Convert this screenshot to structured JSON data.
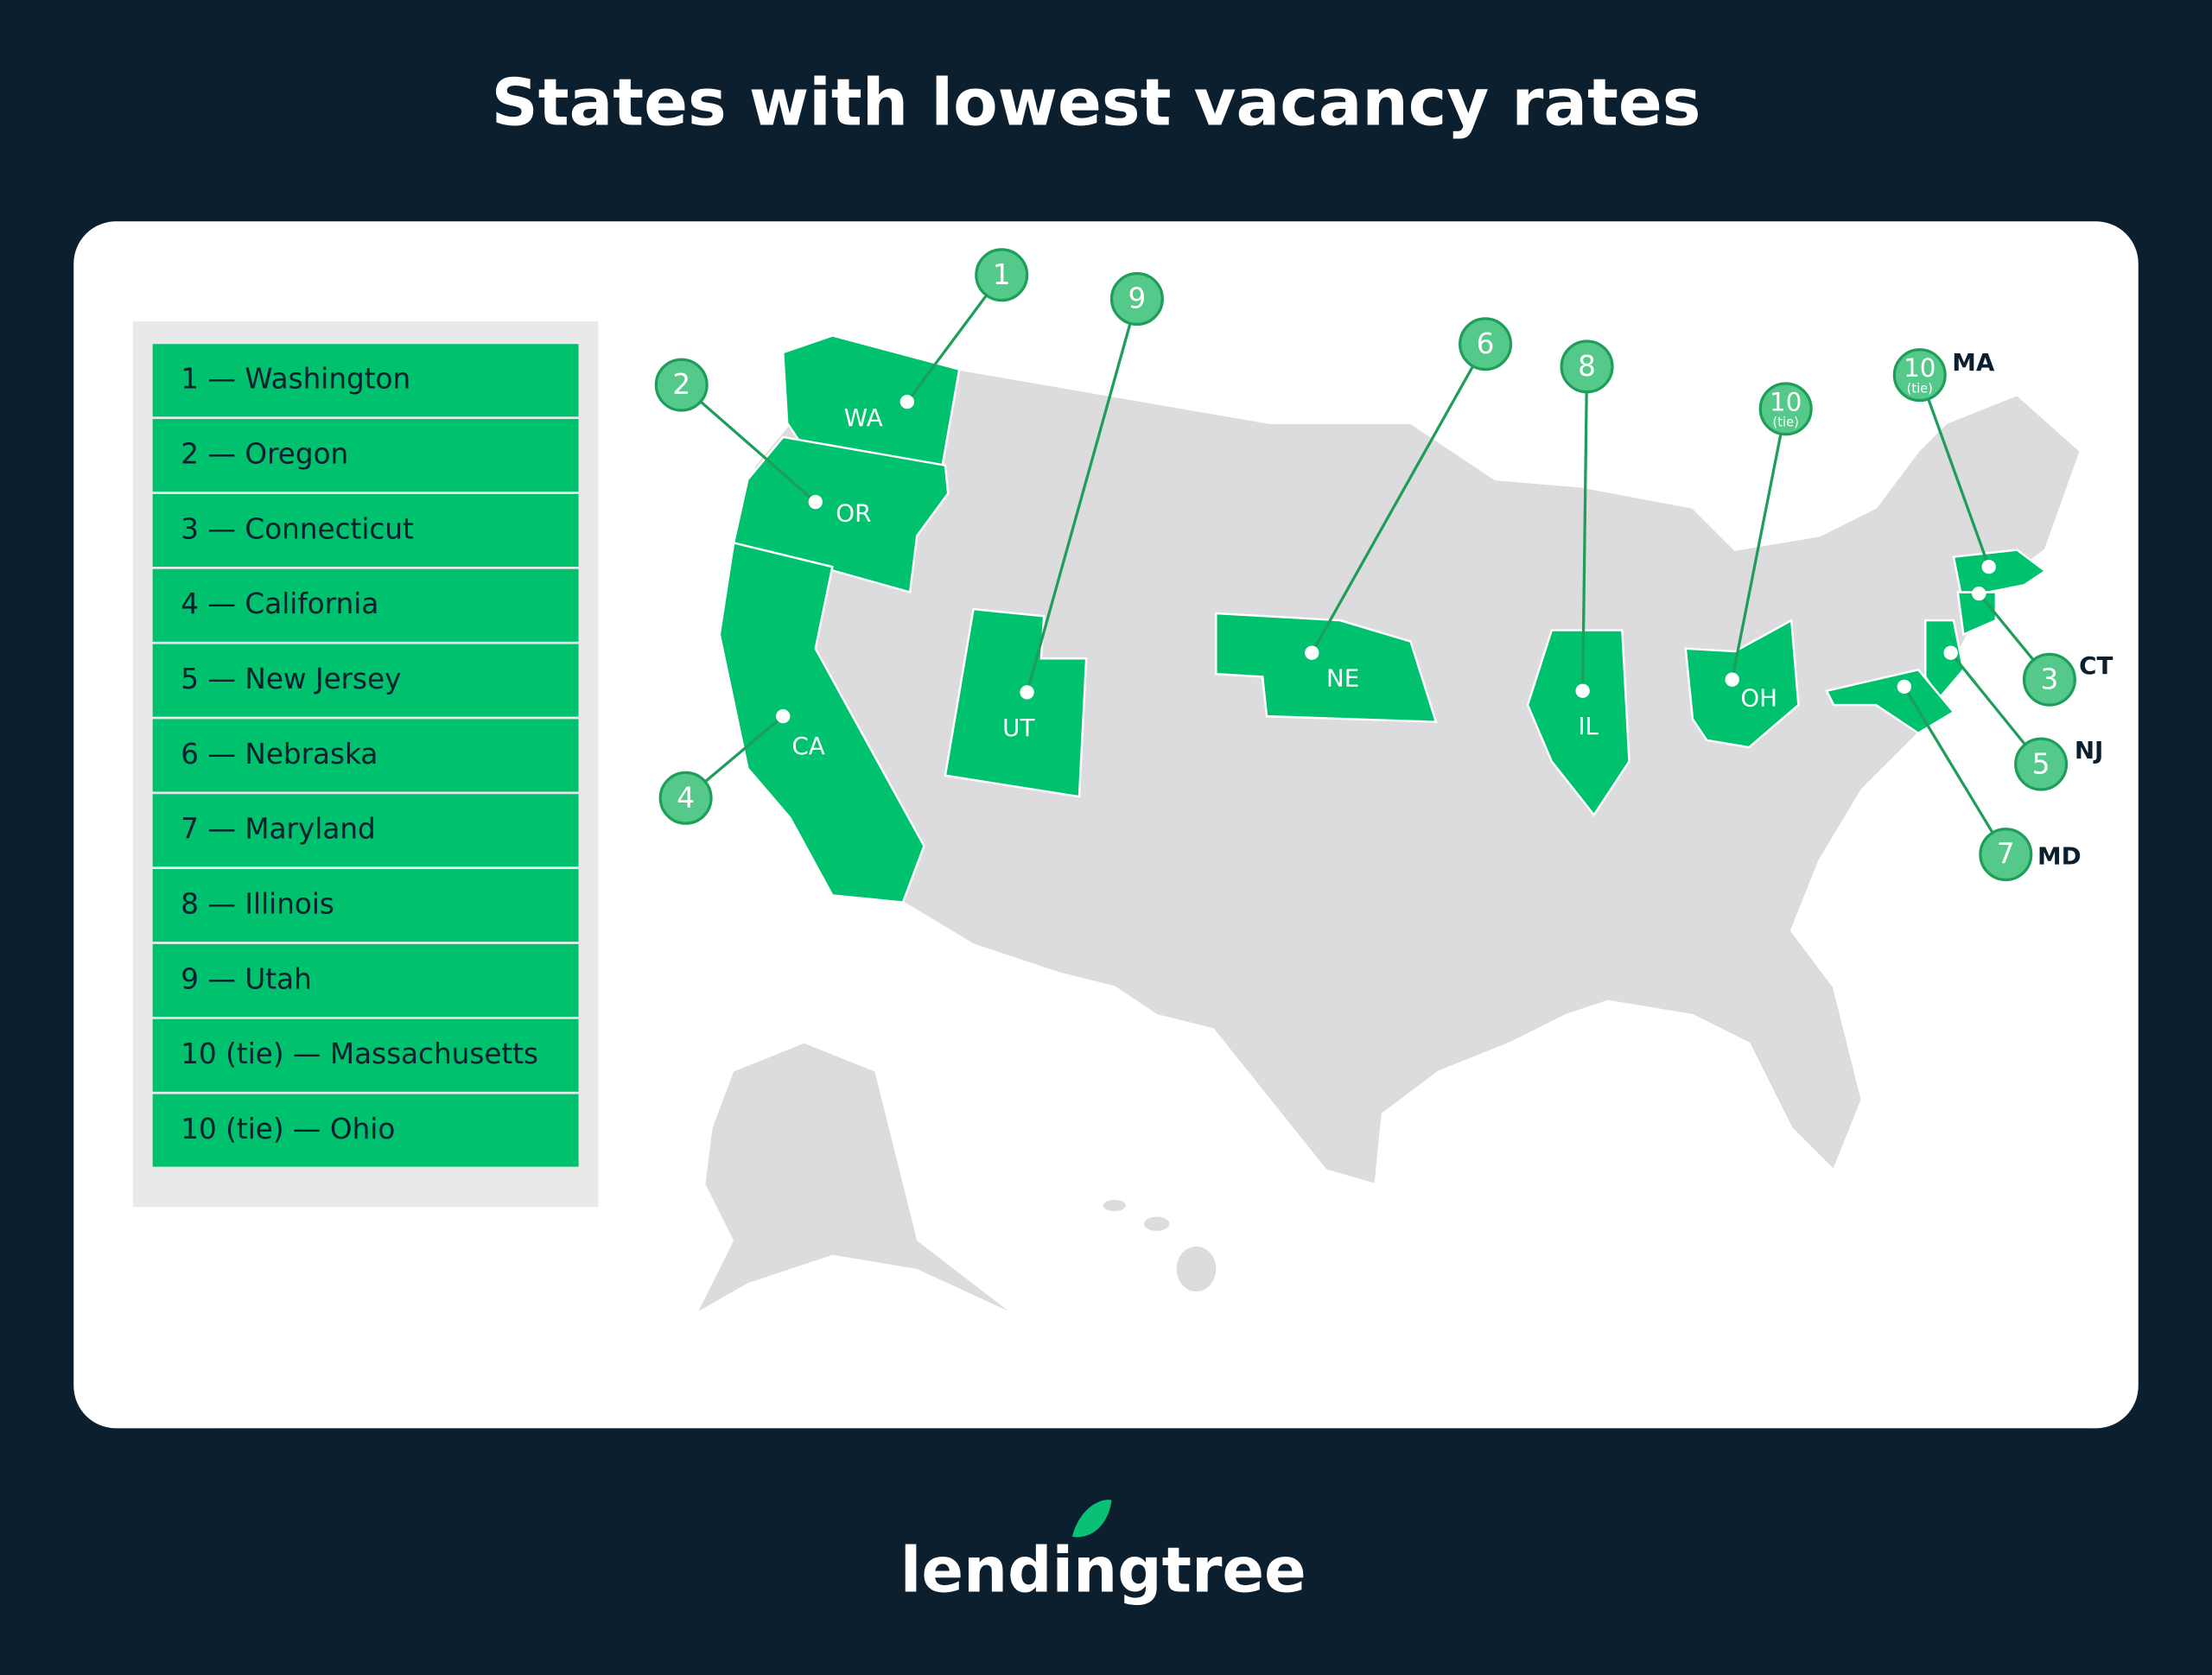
{
  "title": "States with lowest vacancy rates",
  "legend": [
    "1 — Washington",
    "2 — Oregon",
    "3 — Connecticut",
    "4 — California",
    "5 — New Jersey",
    "6 — Nebraska",
    "7 — Maryland",
    "8 — Illinois",
    "9 — Utah",
    "10 (tie) — Massachusetts",
    "10 (tie) — Ohio"
  ],
  "states": [
    {
      "abbr": "WA",
      "rank": "1"
    },
    {
      "abbr": "OR",
      "rank": "2"
    },
    {
      "abbr": "CT",
      "rank": "3"
    },
    {
      "abbr": "CA",
      "rank": "4"
    },
    {
      "abbr": "NJ",
      "rank": "5"
    },
    {
      "abbr": "NE",
      "rank": "6"
    },
    {
      "abbr": "MD",
      "rank": "7"
    },
    {
      "abbr": "IL",
      "rank": "8"
    },
    {
      "abbr": "UT",
      "rank": "9"
    },
    {
      "abbr": "MA",
      "rank": "10",
      "tie": "(tie)"
    },
    {
      "abbr": "OH",
      "rank": "10",
      "tie": "(tie)"
    }
  ],
  "logo": "lendingtree"
}
